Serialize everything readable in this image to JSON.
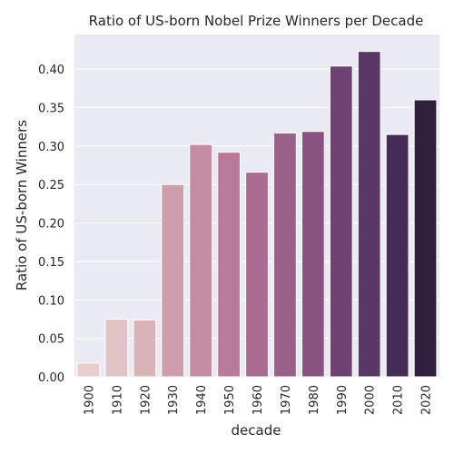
{
  "chart_data": {
    "type": "bar",
    "title": "Ratio of US-born Nobel Prize Winners per Decade",
    "xlabel": "decade",
    "ylabel": "Ratio of US-born Winners",
    "categories": [
      "1900",
      "1910",
      "1920",
      "1930",
      "1940",
      "1950",
      "1960",
      "1970",
      "1980",
      "1990",
      "2000",
      "2010",
      "2020"
    ],
    "values": [
      0.018,
      0.075,
      0.074,
      0.25,
      0.302,
      0.292,
      0.266,
      0.317,
      0.319,
      0.404,
      0.423,
      0.315,
      0.36
    ],
    "yticks": [
      "0.00",
      "0.05",
      "0.10",
      "0.15",
      "0.20",
      "0.25",
      "0.30",
      "0.35",
      "0.40"
    ],
    "ylim": [
      0,
      0.445
    ],
    "grid": true,
    "colors": [
      "#e9cece",
      "#e2c3c5",
      "#d9b3b8",
      "#cf9daa",
      "#c48ca1",
      "#b9799a",
      "#a96a91",
      "#996189",
      "#885380",
      "#6e4273",
      "#5a3766",
      "#452c58",
      "#2f1f3d"
    ],
    "plot_background": "#eaeaf2"
  }
}
